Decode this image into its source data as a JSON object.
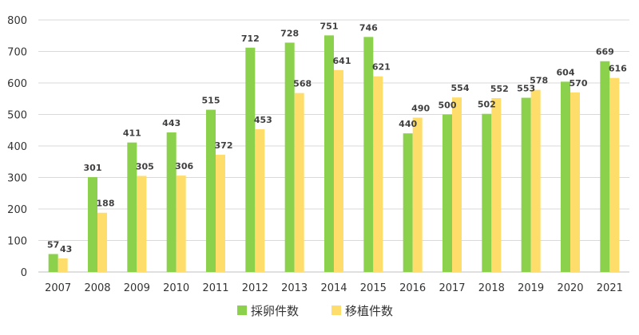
{
  "chart_data": {
    "type": "bar",
    "title": "",
    "xlabel": "",
    "ylabel": "",
    "categories": [
      "2007",
      "2008",
      "2009",
      "2010",
      "2011",
      "2012",
      "2013",
      "2014",
      "2015",
      "2016",
      "2017",
      "2018",
      "2019",
      "2020",
      "2021"
    ],
    "series": [
      {
        "name": "採卵件数",
        "color": "#8cd14b",
        "values": [
          57,
          301,
          411,
          443,
          515,
          712,
          728,
          751,
          746,
          440,
          500,
          502,
          553,
          604,
          669
        ]
      },
      {
        "name": "移植件数",
        "color": "#ffdd6b",
        "values": [
          43,
          188,
          305,
          306,
          372,
          453,
          568,
          641,
          621,
          490,
          554,
          552,
          578,
          570,
          616
        ]
      }
    ],
    "ylim": [
      0,
      800
    ],
    "yticks": [
      0,
      100,
      200,
      300,
      400,
      500,
      600,
      700,
      800
    ],
    "grid": true,
    "legend_position": "bottom-center",
    "data_labels": true
  }
}
